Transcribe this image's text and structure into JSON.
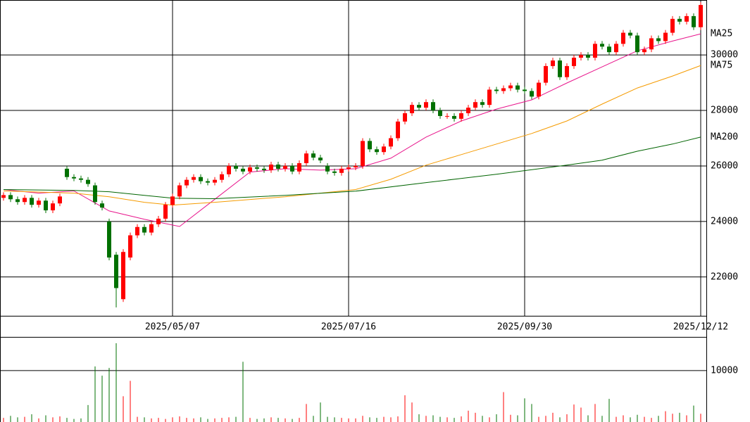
{
  "chart_data": [
    {
      "type": "candlestick",
      "xlim": [
        -0.5,
        99.8
      ],
      "ylim": [
        20600,
        31980
      ],
      "yticks": [
        22000,
        24000,
        26000,
        28000,
        30000
      ],
      "xticks": [
        {
          "value": 24,
          "label": "2025/05/07"
        },
        {
          "value": 49,
          "label": "2025/07/16"
        },
        {
          "value": 74,
          "label": "2025/09/30"
        },
        {
          "value": 99,
          "label": "2025/12/12"
        }
      ],
      "grid": true,
      "up_color": "#ff0000",
      "down_color": "#007000",
      "open": [
        24850,
        24950,
        24800,
        24700,
        24850,
        24600,
        24750,
        24400,
        24650,
        25900,
        25600,
        25550,
        25500,
        25300,
        24650,
        24000,
        22800,
        21200,
        22700,
        23500,
        23800,
        23600,
        23900,
        24100,
        24600,
        24900,
        25300,
        25500,
        25600,
        25450,
        25400,
        25500,
        25700,
        26000,
        25900,
        25800,
        25950,
        25900,
        25850,
        26050,
        25900,
        26000,
        25800,
        26100,
        26450,
        26300,
        26000,
        25800,
        25750,
        25900,
        25950,
        26000,
        26900,
        26600,
        26500,
        26700,
        27000,
        27600,
        27900,
        28200,
        28100,
        28300,
        28000,
        27800,
        27800,
        27700,
        27900,
        28100,
        28300,
        28200,
        28750,
        28700,
        28800,
        28900,
        28750,
        28700,
        28500,
        29000,
        29600,
        29800,
        29200,
        29600,
        29900,
        30000,
        29900,
        30400,
        30300,
        30100,
        30400,
        30800,
        30700,
        30100,
        30200,
        30600,
        30500,
        30800,
        31300,
        31200,
        31400,
        31000
      ],
      "high": [
        25050,
        25050,
        24900,
        24950,
        24950,
        24850,
        24850,
        24750,
        25000,
        26000,
        25700,
        25650,
        25600,
        25400,
        24750,
        24100,
        22900,
        23000,
        23600,
        23900,
        23900,
        24000,
        24200,
        24700,
        25000,
        25400,
        25600,
        25700,
        25700,
        25550,
        25600,
        25800,
        26100,
        26100,
        26000,
        26050,
        26050,
        26000,
        26150,
        26150,
        26100,
        26100,
        26200,
        26550,
        26550,
        26400,
        26100,
        25900,
        26000,
        26050,
        26100,
        27000,
        27000,
        26700,
        26800,
        27100,
        27700,
        28000,
        28300,
        28300,
        28400,
        28400,
        28100,
        27900,
        27900,
        28000,
        28200,
        28400,
        28400,
        28850,
        28850,
        28900,
        29000,
        29000,
        28850,
        28800,
        29100,
        29700,
        29900,
        29900,
        29700,
        30000,
        30100,
        30100,
        30500,
        30500,
        30400,
        30500,
        30900,
        30900,
        30800,
        30300,
        30700,
        30700,
        30900,
        31400,
        31400,
        31500,
        31500,
        31900
      ],
      "low": [
        24750,
        24700,
        24600,
        24600,
        24500,
        24500,
        24300,
        24300,
        24550,
        25500,
        25450,
        25400,
        25250,
        24600,
        24400,
        22600,
        20900,
        21100,
        22600,
        23400,
        23500,
        23500,
        23800,
        24000,
        24500,
        24800,
        25200,
        25400,
        25350,
        25300,
        25300,
        25400,
        25600,
        25800,
        25700,
        25700,
        25800,
        25750,
        25750,
        25800,
        25800,
        25700,
        25700,
        26000,
        26200,
        26100,
        25700,
        25650,
        25650,
        25800,
        25850,
        25900,
        26500,
        26400,
        26400,
        26600,
        26900,
        27500,
        27800,
        28000,
        28000,
        27900,
        27700,
        27700,
        27600,
        27600,
        27800,
        28000,
        28100,
        28100,
        28600,
        28600,
        28700,
        28650,
        28600,
        28400,
        28400,
        28900,
        29500,
        29100,
        29100,
        29500,
        29800,
        29800,
        29800,
        30200,
        30000,
        30000,
        30300,
        30600,
        30000,
        30000,
        30100,
        30400,
        30400,
        30700,
        31100,
        31100,
        30900,
        30900
      ],
      "close": [
        24950,
        24800,
        24700,
        24850,
        24600,
        24750,
        24400,
        24650,
        24900,
        25600,
        25550,
        25500,
        25350,
        24700,
        24500,
        22700,
        21600,
        22900,
        23500,
        23800,
        23600,
        23900,
        24100,
        24600,
        24900,
        25300,
        25500,
        25600,
        25450,
        25400,
        25500,
        25700,
        26000,
        25900,
        25800,
        25950,
        25900,
        25850,
        26050,
        25900,
        26000,
        25800,
        26100,
        26450,
        26300,
        26200,
        25800,
        25750,
        25900,
        25950,
        26000,
        26900,
        26600,
        26500,
        26700,
        27000,
        27600,
        27900,
        28200,
        28100,
        28300,
        28000,
        27800,
        27800,
        27700,
        27900,
        28100,
        28300,
        28200,
        28750,
        28700,
        28800,
        28900,
        28750,
        28700,
        28500,
        29000,
        29600,
        29800,
        29200,
        29600,
        29900,
        30000,
        29900,
        30400,
        30300,
        30100,
        30400,
        30800,
        30700,
        30100,
        30200,
        30600,
        30500,
        30800,
        31300,
        31200,
        31400,
        31000,
        31800
      ],
      "series": [
        {
          "name": "MA25",
          "color": "#e8158c",
          "x": [
            0,
            5,
            10,
            15,
            20,
            25,
            30,
            35,
            40,
            45,
            50,
            55,
            60,
            65,
            70,
            75,
            80,
            85,
            90,
            95,
            99
          ],
          "values": [
            25150,
            25020,
            25100,
            24380,
            24080,
            23820,
            24800,
            25780,
            25900,
            25850,
            25900,
            26280,
            27040,
            27620,
            28050,
            28380,
            28990,
            29570,
            30150,
            30500,
            30760
          ]
        },
        {
          "name": "MA75",
          "color": "#f59b00",
          "x": [
            0,
            10,
            15,
            20,
            24,
            30,
            40,
            50,
            55,
            60,
            65,
            70,
            75,
            80,
            85,
            90,
            95,
            99
          ],
          "values": [
            25100,
            25020,
            24890,
            24690,
            24590,
            24690,
            24890,
            25150,
            25520,
            26030,
            26410,
            26790,
            27170,
            27620,
            28230,
            28810,
            29240,
            29620
          ]
        },
        {
          "name": "MA200",
          "color": "#006400",
          "x": [
            0,
            10,
            15,
            20,
            24,
            30,
            40,
            50,
            60,
            70,
            80,
            85,
            90,
            95,
            99
          ],
          "values": [
            25150,
            25120,
            25070,
            24940,
            24840,
            24820,
            24940,
            25090,
            25400,
            25700,
            26030,
            26210,
            26530,
            26790,
            27040
          ]
        }
      ]
    },
    {
      "type": "volume",
      "xlim": [
        -0.5,
        99.8
      ],
      "ylim": [
        0,
        16400
      ],
      "yticks": [
        10000
      ],
      "values": [
        800,
        1200,
        900,
        1000,
        1500,
        700,
        1300,
        900,
        1100,
        800,
        600,
        700,
        3300,
        10800,
        9000,
        10500,
        15300,
        5000,
        8000,
        1000,
        900,
        700,
        800,
        600,
        900,
        1100,
        800,
        700,
        900,
        600,
        700,
        800,
        900,
        1000,
        11700,
        800,
        600,
        700,
        900,
        800,
        700,
        600,
        800,
        3500,
        1200,
        3800,
        1000,
        900,
        800,
        700,
        700,
        1200,
        900,
        800,
        1000,
        900,
        1100,
        5200,
        3800,
        1500,
        1200,
        1300,
        1000,
        900,
        800,
        1100,
        2200,
        1800,
        1200,
        900,
        1500,
        5800,
        1400,
        1300,
        4600,
        3500,
        1000,
        1200,
        1800,
        900,
        1500,
        3400,
        2800,
        1300,
        3500,
        1200,
        4500,
        1000,
        1300,
        900,
        1400,
        1000,
        800,
        1200,
        2100,
        1600,
        1800,
        1300,
        3200,
        1600
      ]
    }
  ]
}
